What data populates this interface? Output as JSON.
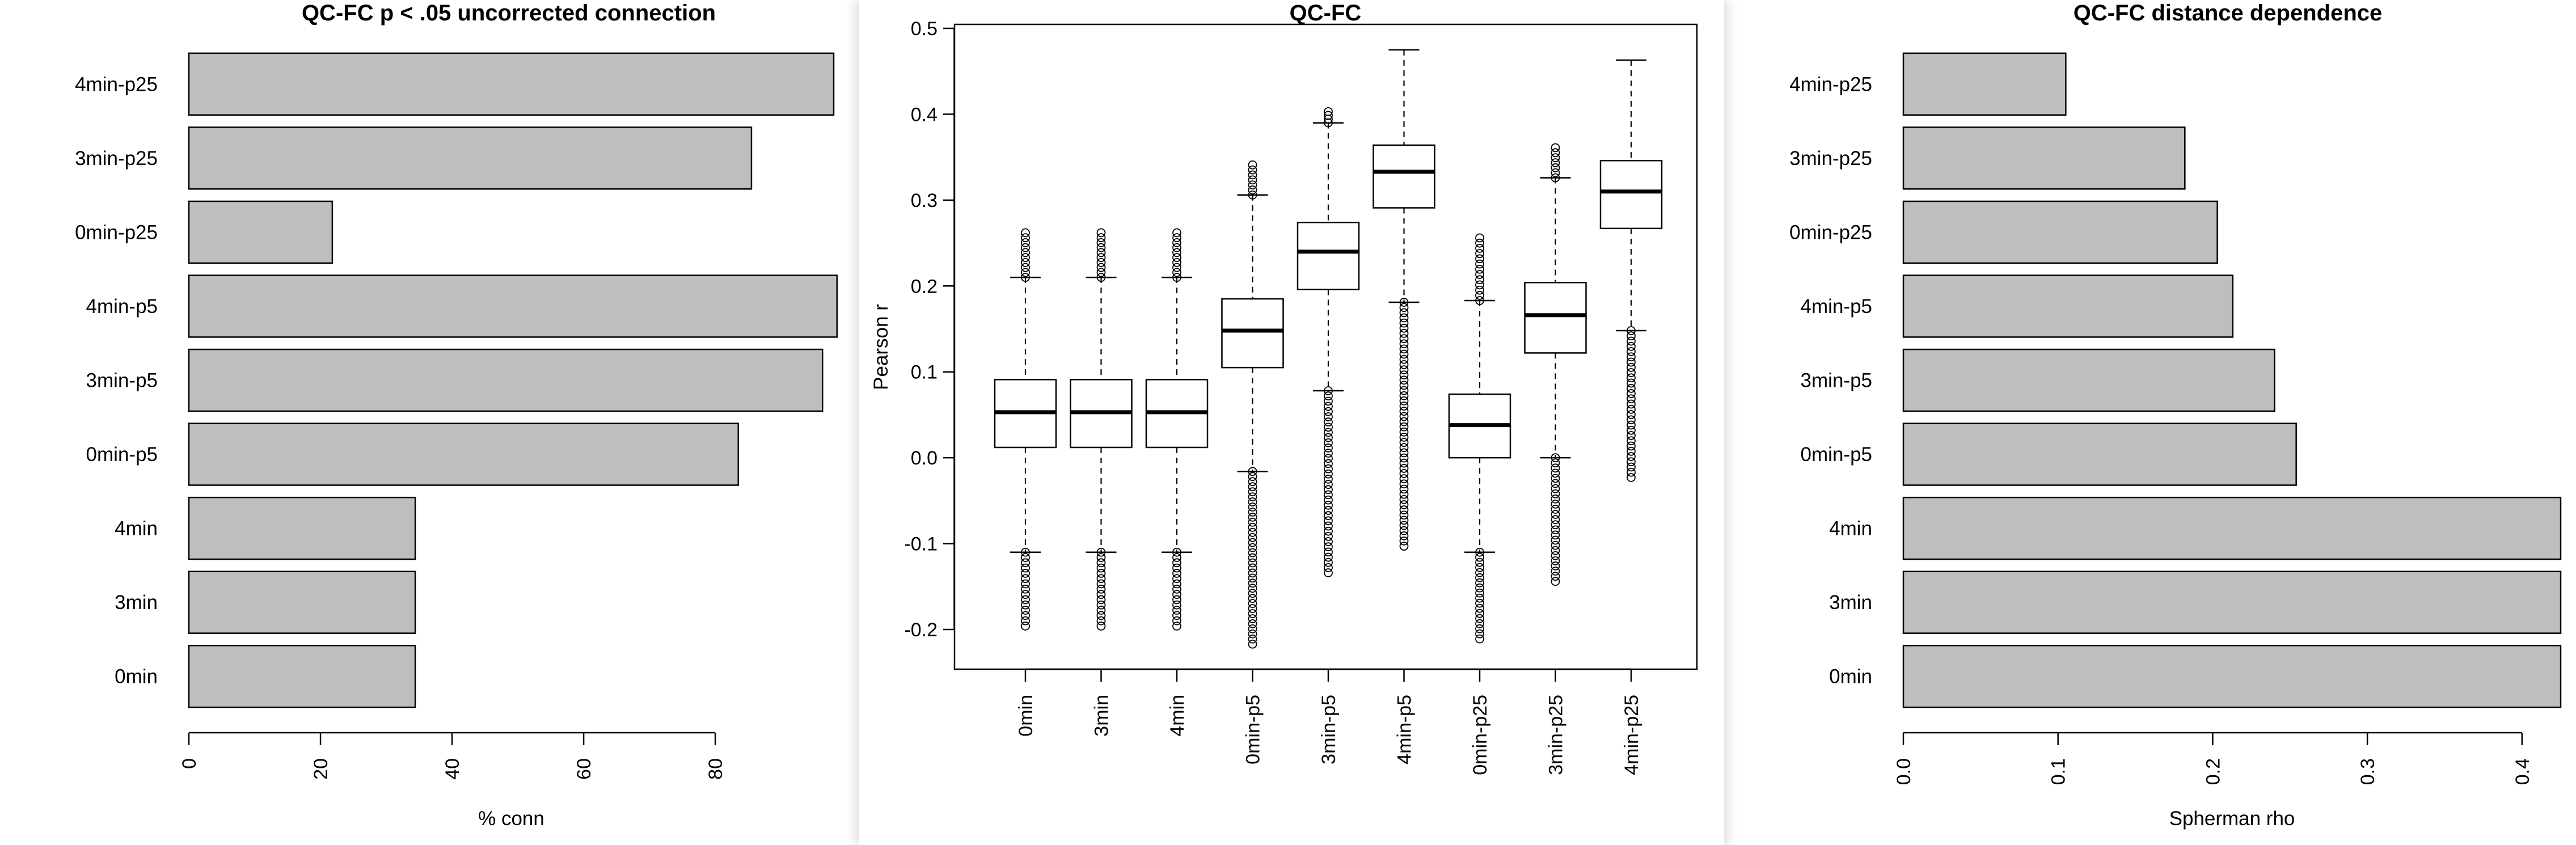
{
  "chart_data": [
    {
      "type": "bar",
      "orientation": "horizontal",
      "title": "QC-FC p < .05 uncorrected connection",
      "xlabel": "% conn",
      "ylabel": "",
      "xlim": [
        0,
        98
      ],
      "xticks": [
        "0",
        "20",
        "40",
        "60",
        "80"
      ],
      "categories": [
        "4min-p25",
        "3min-p25",
        "0min-p25",
        "4min-p5",
        "3min-p5",
        "0min-p5",
        "4min",
        "3min",
        "0min"
      ],
      "values": [
        98,
        85.5,
        21.8,
        98.5,
        96.3,
        83.5,
        34.4,
        34.4,
        34.4
      ],
      "bar_color": "#bebebe"
    },
    {
      "type": "box",
      "title": "QC-FC",
      "xlabel": "",
      "ylabel": "Pearson r",
      "ylim": [
        -0.2,
        0.5
      ],
      "yticks": [
        "-0.2",
        "-0.1",
        "0.0",
        "0.1",
        "0.2",
        "0.3",
        "0.4",
        "0.5"
      ],
      "categories": [
        "0min",
        "3min",
        "4min",
        "0min-p5",
        "3min-p5",
        "4min-p5",
        "0min-p25",
        "3min-p25",
        "4min-p25"
      ],
      "boxes": [
        {
          "whisker_low": -0.11,
          "q1": 0.012,
          "median": 0.053,
          "q3": 0.091,
          "whisker_high": 0.21,
          "outlier_min": -0.196,
          "outlier_max": 0.262
        },
        {
          "whisker_low": -0.11,
          "q1": 0.012,
          "median": 0.053,
          "q3": 0.091,
          "whisker_high": 0.21,
          "outlier_min": -0.196,
          "outlier_max": 0.262
        },
        {
          "whisker_low": -0.11,
          "q1": 0.012,
          "median": 0.053,
          "q3": 0.091,
          "whisker_high": 0.21,
          "outlier_min": -0.196,
          "outlier_max": 0.262
        },
        {
          "whisker_low": -0.016,
          "q1": 0.105,
          "median": 0.148,
          "q3": 0.185,
          "whisker_high": 0.306,
          "outlier_min": -0.217,
          "outlier_max": 0.341
        },
        {
          "whisker_low": 0.078,
          "q1": 0.196,
          "median": 0.24,
          "q3": 0.274,
          "whisker_high": 0.39,
          "outlier_min": -0.134,
          "outlier_max": 0.403
        },
        {
          "whisker_low": 0.181,
          "q1": 0.291,
          "median": 0.333,
          "q3": 0.364,
          "whisker_high": 0.475,
          "outlier_min": -0.103,
          "outlier_max": 0.475
        },
        {
          "whisker_low": -0.11,
          "q1": 0.0,
          "median": 0.038,
          "q3": 0.074,
          "whisker_high": 0.183,
          "outlier_min": -0.211,
          "outlier_max": 0.256
        },
        {
          "whisker_low": 0.0,
          "q1": 0.122,
          "median": 0.166,
          "q3": 0.204,
          "whisker_high": 0.326,
          "outlier_min": -0.144,
          "outlier_max": 0.361
        },
        {
          "whisker_low": 0.148,
          "q1": 0.267,
          "median": 0.31,
          "q3": 0.346,
          "whisker_high": 0.463,
          "outlier_min": -0.023,
          "outlier_max": 0.463
        }
      ]
    },
    {
      "type": "bar",
      "orientation": "horizontal",
      "title": "QC-FC distance dependence",
      "xlabel": "Spherman rho",
      "ylabel": "",
      "xlim": [
        0,
        0.425
      ],
      "xticks": [
        "0.0",
        "0.1",
        "0.2",
        "0.3",
        "0.4"
      ],
      "categories": [
        "4min-p25",
        "3min-p25",
        "0min-p25",
        "4min-p5",
        "3min-p5",
        "0min-p5",
        "4min",
        "3min",
        "0min"
      ],
      "values": [
        0.105,
        0.182,
        0.203,
        0.213,
        0.24,
        0.254,
        0.425,
        0.425,
        0.425
      ],
      "bar_color": "#bebebe"
    }
  ]
}
